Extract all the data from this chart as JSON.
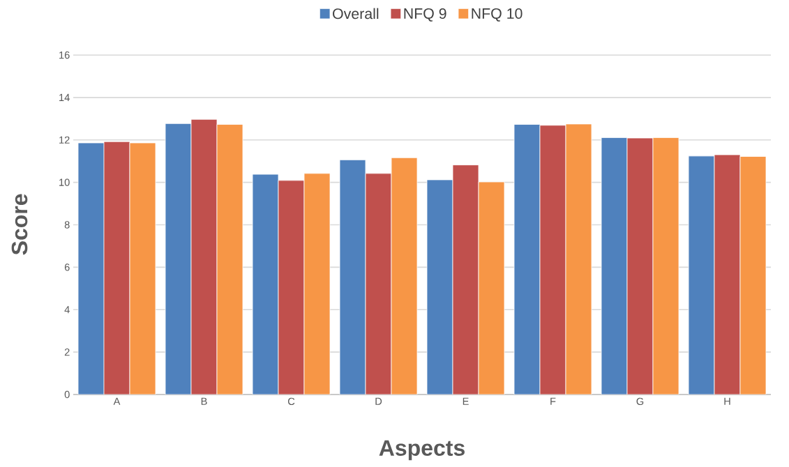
{
  "chart_data": {
    "type": "bar",
    "xlabel": "Aspects",
    "ylabel": "Score",
    "categories": [
      "A",
      "B",
      "C",
      "D",
      "E",
      "F",
      "G",
      "H"
    ],
    "series": [
      {
        "name": "Overall",
        "color": "#4f81bd",
        "values": [
          11.86,
          12.77,
          10.38,
          11.06,
          10.12,
          12.73,
          12.11,
          11.24
        ]
      },
      {
        "name": "NFQ 9",
        "color": "#c0504d",
        "values": [
          11.92,
          12.97,
          10.09,
          10.42,
          10.82,
          12.69,
          12.09,
          11.3
        ]
      },
      {
        "name": "NFQ 10",
        "color": "#f79646",
        "values": [
          11.86,
          12.73,
          10.42,
          11.16,
          10.02,
          12.75,
          12.11,
          11.22
        ]
      }
    ],
    "ylim": [
      0,
      16
    ],
    "yticks": [
      0,
      2,
      4,
      6,
      8,
      10,
      12,
      14,
      16
    ],
    "grid": "y",
    "legend": "top"
  }
}
